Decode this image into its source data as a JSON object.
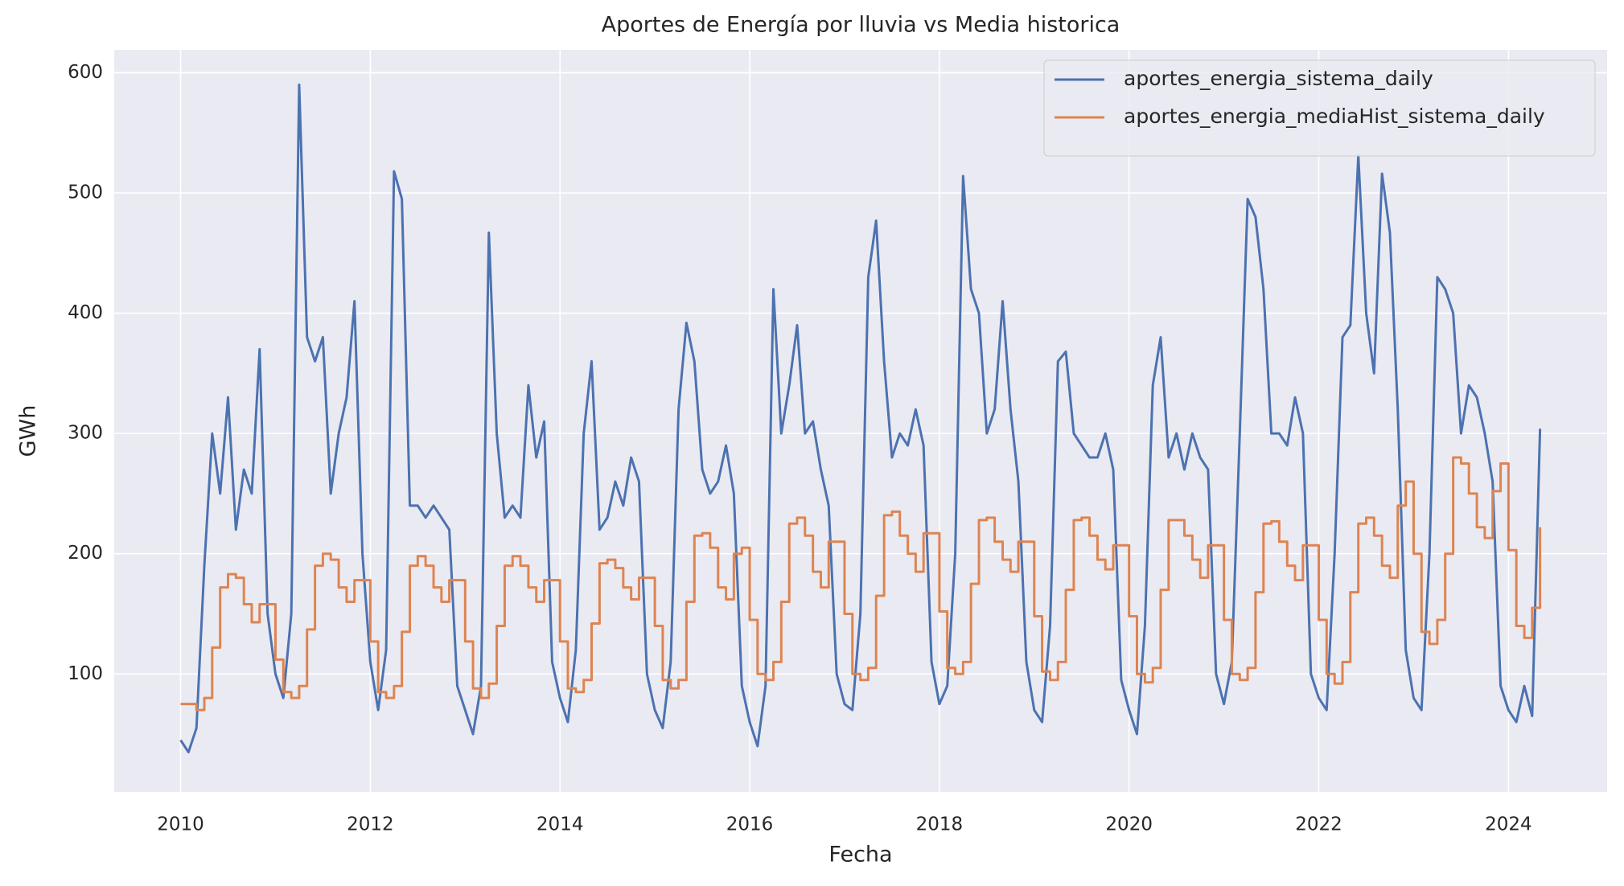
{
  "chart_data": {
    "type": "line",
    "title": "Aportes de Energía por lluvia vs Media historica",
    "x_label": "Fecha",
    "y_label": "GWh",
    "x": [
      2010,
      2010.083,
      2010.167,
      2010.25,
      2010.333,
      2010.417,
      2010.5,
      2010.583,
      2010.667,
      2010.75,
      2010.833,
      2010.917,
      2011,
      2011.083,
      2011.167,
      2011.25,
      2011.333,
      2011.417,
      2011.5,
      2011.583,
      2011.667,
      2011.75,
      2011.833,
      2011.917,
      2012,
      2012.083,
      2012.167,
      2012.25,
      2012.333,
      2012.417,
      2012.5,
      2012.583,
      2012.667,
      2012.75,
      2012.833,
      2012.917,
      2013,
      2013.083,
      2013.167,
      2013.25,
      2013.333,
      2013.417,
      2013.5,
      2013.583,
      2013.667,
      2013.75,
      2013.833,
      2013.917,
      2014,
      2014.083,
      2014.167,
      2014.25,
      2014.333,
      2014.417,
      2014.5,
      2014.583,
      2014.667,
      2014.75,
      2014.833,
      2014.917,
      2015,
      2015.083,
      2015.167,
      2015.25,
      2015.333,
      2015.417,
      2015.5,
      2015.583,
      2015.667,
      2015.75,
      2015.833,
      2015.917,
      2016,
      2016.083,
      2016.167,
      2016.25,
      2016.333,
      2016.417,
      2016.5,
      2016.583,
      2016.667,
      2016.75,
      2016.833,
      2016.917,
      2017,
      2017.083,
      2017.167,
      2017.25,
      2017.333,
      2017.417,
      2017.5,
      2017.583,
      2017.667,
      2017.75,
      2017.833,
      2017.917,
      2018,
      2018.083,
      2018.167,
      2018.25,
      2018.333,
      2018.417,
      2018.5,
      2018.583,
      2018.667,
      2018.75,
      2018.833,
      2018.917,
      2019,
      2019.083,
      2019.167,
      2019.25,
      2019.333,
      2019.417,
      2019.5,
      2019.583,
      2019.667,
      2019.75,
      2019.833,
      2019.917,
      2020,
      2020.083,
      2020.167,
      2020.25,
      2020.333,
      2020.417,
      2020.5,
      2020.583,
      2020.667,
      2020.75,
      2020.833,
      2020.917,
      2021,
      2021.083,
      2021.167,
      2021.25,
      2021.333,
      2021.417,
      2021.5,
      2021.583,
      2021.667,
      2021.75,
      2021.833,
      2021.917,
      2022,
      2022.083,
      2022.167,
      2022.25,
      2022.333,
      2022.417,
      2022.5,
      2022.583,
      2022.667,
      2022.75,
      2022.833,
      2022.917,
      2023,
      2023.083,
      2023.167,
      2023.25,
      2023.333,
      2023.417,
      2023.5,
      2023.583,
      2023.667,
      2023.75,
      2023.833,
      2023.917,
      2024,
      2024.083,
      2024.167,
      2024.25,
      2024.333
    ],
    "series": [
      {
        "name": "aportes_energia_sistema_daily",
        "color": "#4c72b0",
        "step": false,
        "values": [
          45,
          35,
          55,
          190,
          300,
          250,
          330,
          220,
          270,
          250,
          370,
          150,
          100,
          80,
          150,
          590,
          380,
          360,
          380,
          250,
          300,
          330,
          410,
          200,
          110,
          70,
          120,
          518,
          495,
          240,
          240,
          230,
          240,
          230,
          220,
          90,
          70,
          50,
          90,
          467,
          300,
          230,
          240,
          230,
          340,
          280,
          310,
          110,
          80,
          60,
          120,
          300,
          360,
          220,
          230,
          260,
          240,
          280,
          260,
          100,
          70,
          55,
          110,
          320,
          392,
          360,
          270,
          250,
          260,
          290,
          250,
          90,
          60,
          40,
          90,
          420,
          300,
          340,
          390,
          300,
          310,
          270,
          240,
          100,
          75,
          70,
          150,
          430,
          477,
          360,
          280,
          300,
          290,
          320,
          290,
          110,
          75,
          90,
          200,
          514,
          420,
          400,
          300,
          320,
          410,
          320,
          260,
          110,
          70,
          60,
          140,
          360,
          368,
          300,
          290,
          280,
          280,
          300,
          270,
          95,
          70,
          50,
          140,
          340,
          380,
          280,
          300,
          270,
          300,
          280,
          270,
          100,
          75,
          110,
          300,
          495,
          480,
          420,
          300,
          300,
          290,
          330,
          300,
          100,
          80,
          70,
          200,
          380,
          390,
          531,
          400,
          350,
          516,
          467,
          320,
          120,
          80,
          70,
          200,
          430,
          420,
          400,
          300,
          340,
          330,
          300,
          260,
          90,
          70,
          60,
          90,
          65,
          304
        ]
      },
      {
        "name": "aportes_energia_mediaHist_sistema_daily",
        "color": "#dd8452",
        "step": true,
        "values": [
          75,
          75,
          70,
          80,
          122,
          172,
          183,
          180,
          158,
          143,
          158,
          158,
          112,
          85,
          80,
          90,
          137,
          190,
          200,
          195,
          172,
          160,
          178,
          178,
          127,
          85,
          80,
          90,
          135,
          190,
          198,
          190,
          172,
          160,
          178,
          178,
          127,
          88,
          80,
          92,
          140,
          190,
          198,
          190,
          172,
          160,
          178,
          178,
          127,
          88,
          85,
          95,
          142,
          192,
          195,
          188,
          172,
          162,
          180,
          180,
          140,
          95,
          88,
          95,
          160,
          215,
          217,
          205,
          172,
          162,
          200,
          205,
          145,
          100,
          95,
          110,
          160,
          225,
          230,
          215,
          185,
          172,
          210,
          210,
          150,
          100,
          95,
          105,
          165,
          232,
          235,
          215,
          200,
          185,
          217,
          217,
          152,
          105,
          100,
          110,
          175,
          228,
          230,
          210,
          195,
          185,
          210,
          210,
          148,
          102,
          95,
          110,
          170,
          228,
          230,
          215,
          195,
          187,
          207,
          207,
          148,
          100,
          93,
          105,
          170,
          228,
          228,
          215,
          195,
          180,
          207,
          207,
          145,
          100,
          95,
          105,
          168,
          225,
          227,
          210,
          190,
          178,
          207,
          207,
          145,
          100,
          92,
          110,
          168,
          225,
          230,
          215,
          190,
          180,
          240,
          260,
          200,
          135,
          125,
          145,
          200,
          280,
          275,
          250,
          222,
          213,
          252,
          275,
          203,
          140,
          130,
          155,
          222
        ]
      }
    ],
    "xlim": [
      2009.3,
      2025.04
    ],
    "xticks": [
      2010,
      2012,
      2014,
      2016,
      2018,
      2020,
      2022,
      2024
    ],
    "ylim": [
      1.9,
      619
    ],
    "yticks": [
      100,
      200,
      300,
      400,
      500,
      600
    ],
    "grid": true,
    "legend": "upper right"
  }
}
